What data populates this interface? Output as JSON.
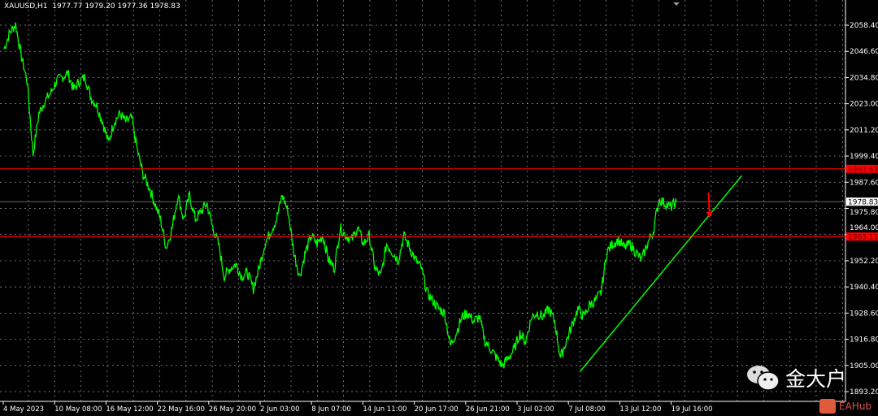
{
  "header": {
    "symbol": "XAUUSD,H1",
    "ohlc": "1977.77 1979.20 1977.36 1978.83"
  },
  "watermark": {
    "text": "金大户",
    "icon": "wechat-icon",
    "brand": "EAHub"
  },
  "colors": {
    "background": "#000000",
    "price": "#00ff00",
    "grid": "#c0c0c0",
    "level": "#ff0000",
    "trendline": "#00ff00",
    "arrow": "#ff0000",
    "axis": "#ffffff"
  },
  "chart_data": {
    "type": "line",
    "title": "XAUUSD,H1",
    "ylim": [
      1893.2,
      2058.4
    ],
    "yticks": [
      "2058.40",
      "2046.60",
      "2034.80",
      "2023.00",
      "2011.20",
      "1999.40",
      "1987.60",
      "1975.80",
      "1964.00",
      "1952.20",
      "1940.40",
      "1928.60",
      "1916.80",
      "1905.00",
      "1893.20"
    ],
    "xticks": [
      "4 May 2023",
      "10 May 08:00",
      "16 May 12:00",
      "22 May 16:00",
      "26 May 20:00",
      "2 Jun 03:00",
      "8 Jun 07:00",
      "14 Jun 11:00",
      "20 Jun 17:00",
      "26 Jun 21:00",
      "3 Jul 02:00",
      "7 Jul 08:00",
      "13 Jul 12:00",
      "19 Jul 16:00"
    ],
    "grid": true,
    "closes": [
      2047.8,
      2055.1,
      2058.8,
      2044.1,
      2033.1,
      2000.1,
      2018.5,
      2024.0,
      2027.6,
      2033.1,
      2035.0,
      2036.8,
      2029.4,
      2033.1,
      2035.0,
      2025.8,
      2022.1,
      2014.8,
      2005.6,
      2014.8,
      2018.5,
      2014.8,
      2016.6,
      2002.0,
      1991.0,
      1985.5,
      1978.1,
      1970.8,
      1958.0,
      1967.1,
      1981.8,
      1970.8,
      1981.8,
      1970.8,
      1974.5,
      1978.1,
      1967.1,
      1959.8,
      1945.1,
      1948.8,
      1950.6,
      1945.1,
      1946.9,
      1939.6,
      1948.8,
      1959.8,
      1965.3,
      1970.8,
      1981.8,
      1974.5,
      1956.1,
      1945.1,
      1956.1,
      1963.5,
      1959.8,
      1963.5,
      1952.5,
      1948.8,
      1967.1,
      1963.5,
      1961.6,
      1967.1,
      1959.8,
      1963.5,
      1948.8,
      1945.1,
      1959.8,
      1956.1,
      1952.5,
      1963.5,
      1958.0,
      1952.5,
      1948.8,
      1937.8,
      1934.1,
      1930.5,
      1928.7,
      1914.0,
      1919.5,
      1926.8,
      1928.7,
      1925.0,
      1926.8,
      1915.8,
      1912.2,
      1908.5,
      1904.8,
      1908.5,
      1912.2,
      1919.5,
      1915.8,
      1926.8,
      1928.7,
      1926.8,
      1930.5,
      1925.0,
      1908.5,
      1915.8,
      1923.2,
      1930.5,
      1926.8,
      1932.3,
      1934.1,
      1937.8,
      1956.1,
      1959.8,
      1961.6,
      1958.0,
      1959.8,
      1956.1,
      1952.5,
      1959.8,
      1965.3,
      1980.0,
      1978.1,
      1976.3,
      1978.8
    ],
    "levels": [
      {
        "price": 1993.63,
        "label": "1993.63",
        "color": "#ff0000"
      },
      {
        "price": 1963.11,
        "label": "1963.11",
        "color": "#ff0000"
      }
    ],
    "current_price": {
      "price": 1978.83,
      "label": "1978.83"
    },
    "trendline": {
      "start_index": 99.4,
      "start_price": 1902.3,
      "end_index": 127.3,
      "end_price": 1990.6
    },
    "arrow": {
      "index": 121,
      "from_price": 1983.0,
      "to_price": 1972.0,
      "direction": "down"
    }
  }
}
